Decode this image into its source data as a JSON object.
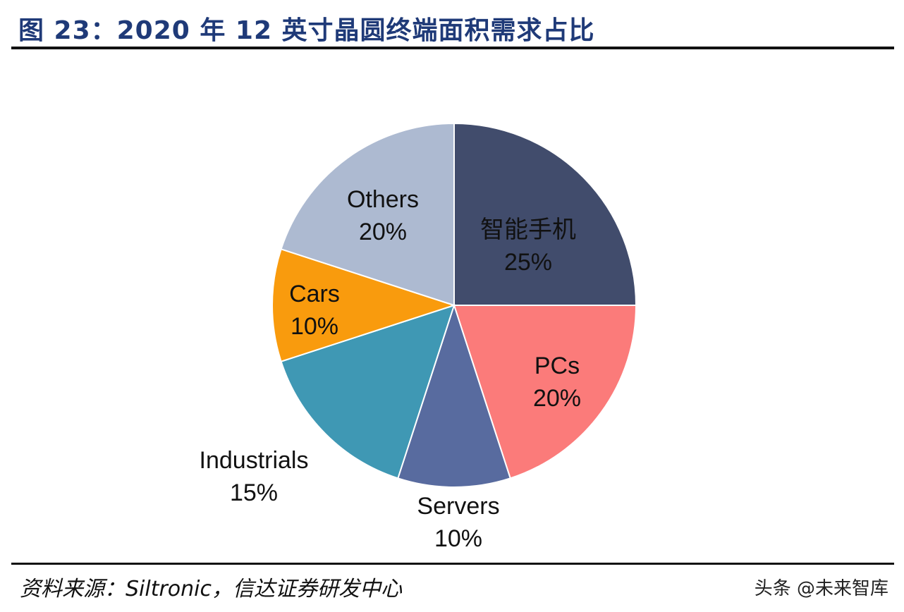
{
  "title": "图 23：2020 年 12 英寸晶圆终端面积需求占比",
  "source": "资料来源：Siltronic，信达证券研发中心",
  "watermark": "头条 @未来智库",
  "chart_data": {
    "type": "pie",
    "start": "12 o'clock",
    "direction": "clockwise",
    "slices": [
      {
        "label": "智能手机",
        "value": 25,
        "value_label": "25%",
        "color": "#414c6c"
      },
      {
        "label": "PCs",
        "value": 20,
        "value_label": "20%",
        "color": "#fb7b7a"
      },
      {
        "label": "Servers",
        "value": 10,
        "value_label": "10%",
        "color": "#586b9f"
      },
      {
        "label": "Industrials",
        "value": 15,
        "value_label": "15%",
        "color": "#3f98b4"
      },
      {
        "label": "Cars",
        "value": 10,
        "value_label": "10%",
        "color": "#f99b0d"
      },
      {
        "label": "Others",
        "value": 20,
        "value_label": "20%",
        "color": "#adbad1"
      }
    ]
  }
}
